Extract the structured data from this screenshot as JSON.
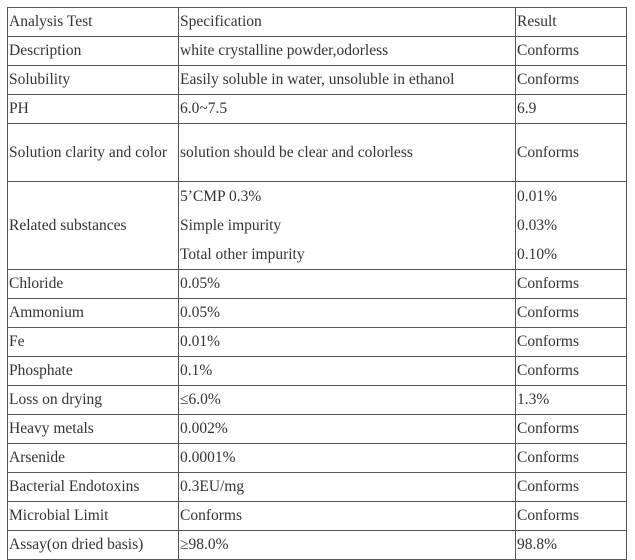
{
  "table": {
    "headers": [
      "Analysis Test",
      "Specification",
      "Result"
    ],
    "rows": [
      {
        "test": "Description",
        "spec": "white crystalline powder,odorless",
        "result": "Conforms"
      },
      {
        "test": "Solubility",
        "spec": "Easily soluble in water, unsoluble in ethanol",
        "result": "Conforms"
      },
      {
        "test": "PH",
        "spec": "6.0~7.5",
        "result": "6.9"
      },
      {
        "test": "Solution clarity and color",
        "spec": "solution should be clear and colorless",
        "result": "Conforms"
      },
      {
        "test": "Related substances",
        "spec_lines": [
          "5’CMP 0.3%",
          "Simple impurity",
          "Total other impurity"
        ],
        "result_lines": [
          "0.01%",
          "0.03%",
          "0.10%"
        ]
      },
      {
        "test": "Chloride",
        "spec": "0.05%",
        "result": "Conforms"
      },
      {
        "test": "Ammonium",
        "spec": "0.05%",
        "result": "Conforms"
      },
      {
        "test": "Fe",
        "spec": "0.01%",
        "result": "Conforms"
      },
      {
        "test": "Phosphate",
        "spec": "0.1%",
        "result": "Conforms"
      },
      {
        "test": "Loss on drying",
        "spec": "≤6.0%",
        "result": "1.3%"
      },
      {
        "test": "Heavy metals",
        "spec": "0.002%",
        "result": "Conforms"
      },
      {
        "test": "Arsenide",
        "spec": "0.0001%",
        "result": "Conforms"
      },
      {
        "test": "Bacterial Endotoxins",
        "spec": "0.3EU/mg",
        "result": "Conforms"
      },
      {
        "test": "Microbial Limit",
        "spec": "Conforms",
        "result": "Conforms"
      },
      {
        "test": "Assay(on dried basis)",
        "spec": "≥98.0%",
        "result": "98.8%"
      }
    ]
  }
}
